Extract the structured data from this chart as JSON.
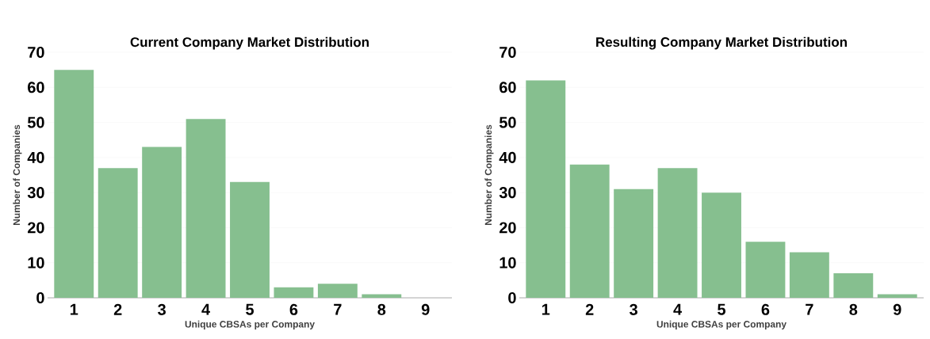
{
  "chart_data": [
    {
      "type": "bar",
      "title": "Current Company Market Distribution",
      "xlabel": "Unique CBSAs per Company",
      "ylabel": "Number of Companies",
      "categories": [
        "1",
        "2",
        "3",
        "4",
        "5",
        "6",
        "7",
        "8",
        "9"
      ],
      "values": [
        65,
        37,
        43,
        51,
        33,
        3,
        4,
        1,
        0
      ],
      "color": "#86bf8f",
      "ylim": [
        0,
        70
      ],
      "yticks": [
        0,
        10,
        20,
        30,
        40,
        50,
        60,
        70
      ],
      "grid": "y"
    },
    {
      "type": "bar",
      "title": "Resulting Company Market Distribution",
      "xlabel": "Unique CBSAs per Company",
      "ylabel": "Number of Companies",
      "categories": [
        "1",
        "2",
        "3",
        "4",
        "5",
        "6",
        "7",
        "8",
        "9"
      ],
      "values": [
        62,
        38,
        31,
        37,
        30,
        16,
        13,
        7,
        1
      ],
      "color": "#86bf8f",
      "ylim": [
        0,
        70
      ],
      "yticks": [
        0,
        10,
        20,
        30,
        40,
        50,
        60,
        70
      ],
      "grid": "y"
    }
  ]
}
